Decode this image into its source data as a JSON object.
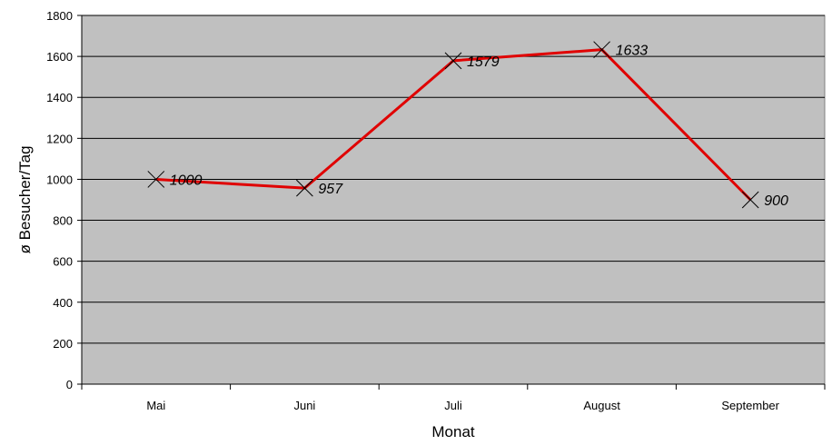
{
  "chart_data": {
    "type": "line",
    "categories": [
      "Mai",
      "Juni",
      "Juli",
      "August",
      "September"
    ],
    "series": [
      {
        "values": [
          1000,
          957,
          1579,
          1633,
          900
        ],
        "color": "#e00000"
      }
    ],
    "data_labels": [
      "1000",
      "957",
      "1579",
      "1633",
      "900"
    ],
    "xlabel": "Monat",
    "ylabel": "ø Besucher/Tag",
    "ylim": [
      0,
      1800
    ],
    "yticks": [
      0,
      200,
      400,
      600,
      800,
      1000,
      1200,
      1400,
      1600,
      1800
    ],
    "grid": true,
    "marker": "x",
    "plot_background": "#c0c0c0"
  }
}
